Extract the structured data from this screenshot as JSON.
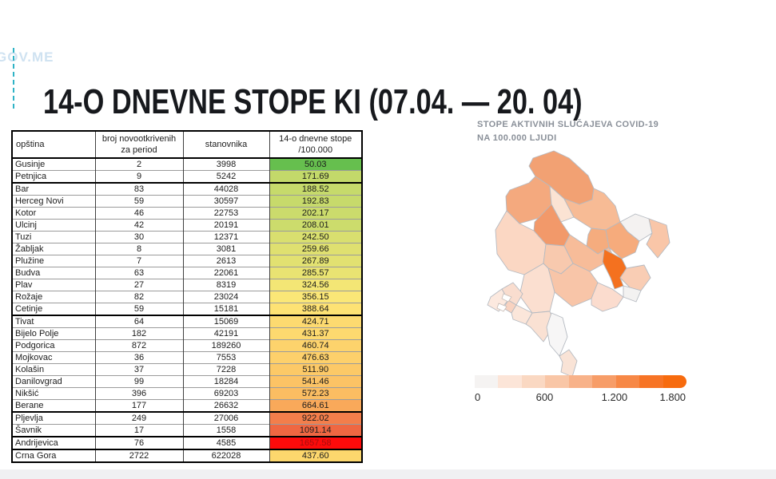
{
  "slide": {
    "title": "14-O DNEVNE STOPE KI (07.04. — 20. 04)",
    "watermark": "GOV.ME"
  },
  "table": {
    "headers": [
      {
        "id": "opstina",
        "lines": [
          "opština"
        ]
      },
      {
        "id": "broj",
        "lines": [
          "broj novootkrivenih",
          "za period"
        ]
      },
      {
        "id": "stanovnika",
        "lines": [
          "stanovnika"
        ]
      },
      {
        "id": "stopa",
        "lines": [
          "14-o dnevne stope",
          "/100.000"
        ]
      }
    ],
    "rows": [
      {
        "name": "Gusinje",
        "cases": "2",
        "population": "3998",
        "rate": "50.03",
        "rate_bg": "#66bf4e",
        "rate_text": "#1c1c1c",
        "thick": false
      },
      {
        "name": "Petnjica",
        "cases": "9",
        "population": "5242",
        "rate": "171.69",
        "rate_bg": "#c3d96a",
        "rate_text": "#1c1c1c",
        "thick": true
      },
      {
        "name": "Bar",
        "cases": "83",
        "population": "44028",
        "rate": "188.52",
        "rate_bg": "#c6da6b",
        "rate_text": "#1c1c1c",
        "thick": false
      },
      {
        "name": "Herceg Novi",
        "cases": "59",
        "population": "30597",
        "rate": "192.83",
        "rate_bg": "#c7da6b",
        "rate_text": "#1c1c1c",
        "thick": false
      },
      {
        "name": "Kotor",
        "cases": "46",
        "population": "22753",
        "rate": "202.17",
        "rate_bg": "#cbdb6c",
        "rate_text": "#1c1c1c",
        "thick": false
      },
      {
        "name": "Ulcinj",
        "cases": "42",
        "population": "20191",
        "rate": "208.01",
        "rate_bg": "#ccdc6c",
        "rate_text": "#1c1c1c",
        "thick": false
      },
      {
        "name": "Tuzi",
        "cases": "30",
        "population": "12371",
        "rate": "242.50",
        "rate_bg": "#d9df6f",
        "rate_text": "#1c1c1c",
        "thick": false
      },
      {
        "name": "Žabljak",
        "cases": "8",
        "population": "3081",
        "rate": "259.66",
        "rate_bg": "#dfe070",
        "rate_text": "#1c1c1c",
        "thick": false
      },
      {
        "name": "Plužine",
        "cases": "7",
        "population": "2613",
        "rate": "267.89",
        "rate_bg": "#e2e171",
        "rate_text": "#1c1c1c",
        "thick": false
      },
      {
        "name": "Budva",
        "cases": "63",
        "population": "22061",
        "rate": "285.57",
        "rate_bg": "#e9e372",
        "rate_text": "#1c1c1c",
        "thick": false
      },
      {
        "name": "Plav",
        "cases": "27",
        "population": "8319",
        "rate": "324.56",
        "rate_bg": "#f3e675",
        "rate_text": "#1c1c1c",
        "thick": false
      },
      {
        "name": "Rožaje",
        "cases": "82",
        "population": "23024",
        "rate": "356.15",
        "rate_bg": "#fbe777",
        "rate_text": "#1c1c1c",
        "thick": false
      },
      {
        "name": "Cetinje",
        "cases": "59",
        "population": "15181",
        "rate": "388.64",
        "rate_bg": "#fee274",
        "rate_text": "#1c1c1c",
        "thick": true
      },
      {
        "name": "Tivat",
        "cases": "64",
        "population": "15069",
        "rate": "424.71",
        "rate_bg": "#fdda70",
        "rate_text": "#1c1c1c",
        "thick": false
      },
      {
        "name": "Bijelo Polje",
        "cases": "182",
        "population": "42191",
        "rate": "431.37",
        "rate_bg": "#fdd96f",
        "rate_text": "#1c1c1c",
        "thick": false
      },
      {
        "name": "Podgorica",
        "cases": "872",
        "population": "189260",
        "rate": "460.74",
        "rate_bg": "#fdd36c",
        "rate_text": "#1c1c1c",
        "thick": false
      },
      {
        "name": "Mojkovac",
        "cases": "36",
        "population": "7553",
        "rate": "476.63",
        "rate_bg": "#fdd06b",
        "rate_text": "#1c1c1c",
        "thick": false
      },
      {
        "name": "Kolašin",
        "cases": "37",
        "population": "7228",
        "rate": "511.90",
        "rate_bg": "#fcc967",
        "rate_text": "#1c1c1c",
        "thick": false
      },
      {
        "name": "Danilovgrad",
        "cases": "99",
        "population": "18284",
        "rate": "541.46",
        "rate_bg": "#fcc365",
        "rate_text": "#1c1c1c",
        "thick": false
      },
      {
        "name": "Nikšić",
        "cases": "396",
        "population": "69203",
        "rate": "572.23",
        "rate_bg": "#fbbd62",
        "rate_text": "#1c1c1c",
        "thick": false
      },
      {
        "name": "Berane",
        "cases": "177",
        "population": "26632",
        "rate": "664.61",
        "rate_bg": "#f9a95a",
        "rate_text": "#1c1c1c",
        "thick": true
      },
      {
        "name": "Pljevlja",
        "cases": "249",
        "population": "27006",
        "rate": "922.02",
        "rate_bg": "#f37e4b",
        "rate_text": "#1c1c1c",
        "thick": false
      },
      {
        "name": "Šavnik",
        "cases": "17",
        "population": "1558",
        "rate": "1091.14",
        "rate_bg": "#ef6742",
        "rate_text": "#1c1c1c",
        "thick": true
      },
      {
        "name": "Andrijevica",
        "cases": "76",
        "population": "4585",
        "rate": "1657.58",
        "rate_bg": "#fd0b0b",
        "rate_text": "#a50d0d",
        "thick": true
      },
      {
        "name": "Crna Gora",
        "cases": "2722",
        "population": "622028",
        "rate": "437.60",
        "rate_bg": "#fcd76d",
        "rate_text": "#1c1c1c",
        "thick": false
      }
    ]
  },
  "map": {
    "title_lines": [
      "STOPE AKTIVNIH SLUČAJEVA COVID-19",
      "NA 100.000 LJUDI"
    ],
    "regions": [
      {
        "id": "pljevlja",
        "color": "#f2a173"
      },
      {
        "id": "pluzine",
        "color": "#f4a97e"
      },
      {
        "id": "zabljak",
        "color": "#fbe3d3"
      },
      {
        "id": "bijelo-polje",
        "color": "#f7bb95"
      },
      {
        "id": "petnjica",
        "color": "#f4f2f1"
      },
      {
        "id": "rozaje",
        "color": "#f9c6a8"
      },
      {
        "id": "berane",
        "color": "#f6ab7c"
      },
      {
        "id": "mojkovac",
        "color": "#f5ac7e"
      },
      {
        "id": "savnik",
        "color": "#f2996a"
      },
      {
        "id": "kolasin",
        "color": "#f7bc99"
      },
      {
        "id": "andrijevica",
        "color": "#f4711f"
      },
      {
        "id": "plav",
        "color": "#f9cdb4"
      },
      {
        "id": "gusinje",
        "color": "#f3f2f1"
      },
      {
        "id": "niksic",
        "color": "#fbd7c3"
      },
      {
        "id": "danilovgrad",
        "color": "#f8c9ae"
      },
      {
        "id": "podgorica",
        "color": "#f8c5a8"
      },
      {
        "id": "tuzi",
        "color": "#fbdcce"
      },
      {
        "id": "cetinje",
        "color": "#fbdfd0"
      },
      {
        "id": "herceg-novi",
        "color": "#fce9df"
      },
      {
        "id": "kotor",
        "color": "#f9ddcf"
      },
      {
        "id": "tivat",
        "color": "#f8d2c0"
      },
      {
        "id": "budva",
        "color": "#fbe6da"
      },
      {
        "id": "bar",
        "color": "#fae1d3"
      },
      {
        "id": "skadar-lake",
        "color": "#f7f6f6"
      },
      {
        "id": "ulcinj",
        "color": "#f9e3d6"
      }
    ],
    "legend": {
      "ticks": [
        "0",
        "600",
        "1.200",
        "1.800"
      ],
      "segment_colors": [
        "#f5f3f2",
        "#fce5d8",
        "#fad8c2",
        "#f9c6a6",
        "#f8b289",
        "#f79d68",
        "#f78846",
        "#f77425",
        "#f76b0e"
      ]
    }
  }
}
